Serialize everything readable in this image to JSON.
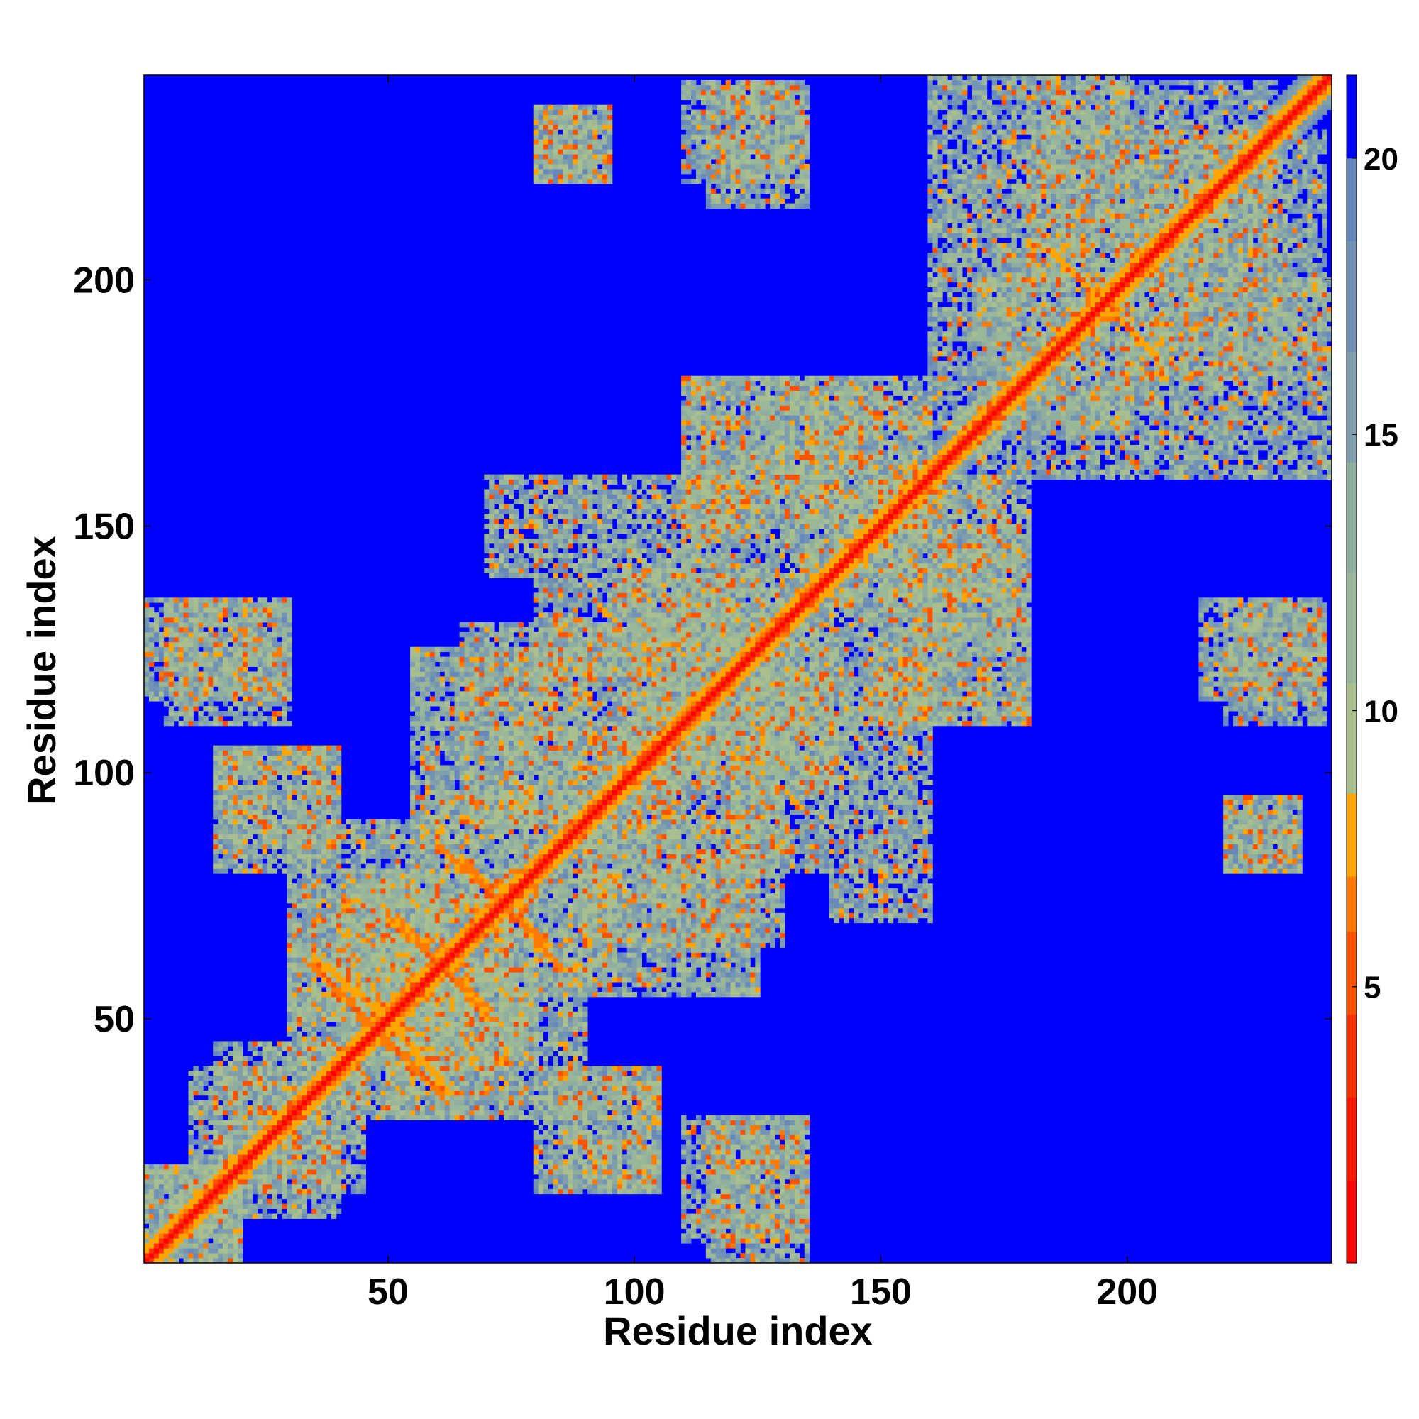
{
  "chart_data": {
    "type": "heatmap",
    "title": "",
    "xlabel": "Residue index",
    "ylabel": "Residue index",
    "xlim": [
      1,
      241
    ],
    "ylim": [
      1,
      241
    ],
    "x_ticks": [
      50,
      100,
      150,
      200
    ],
    "y_ticks": [
      50,
      100,
      150,
      200
    ],
    "colorbar": {
      "ticks": [
        5,
        10,
        15,
        20
      ],
      "range": [
        0,
        21.5
      ],
      "levels": [
        {
          "max": 1.5,
          "color": "#ff0000"
        },
        {
          "max": 3.0,
          "color": "#ff1a00"
        },
        {
          "max": 4.5,
          "color": "#ff3300"
        },
        {
          "max": 6.0,
          "color": "#ff5200"
        },
        {
          "max": 7.0,
          "color": "#ff7a00"
        },
        {
          "max": 8.5,
          "color": "#ffa500"
        },
        {
          "max": 10.5,
          "color": "#a9bf8e"
        },
        {
          "max": 12.5,
          "color": "#9ab79a"
        },
        {
          "max": 14.5,
          "color": "#8fae9f"
        },
        {
          "max": 16.5,
          "color": "#7f9fad"
        },
        {
          "max": 18.5,
          "color": "#7293b3"
        },
        {
          "max": 20.0,
          "color": "#6688bb"
        },
        {
          "max": 21.5,
          "color": "#0000ff"
        }
      ]
    },
    "background_color": "#0000ff",
    "diagonal": {
      "min_distance": 0,
      "near_distance": 3.8
    },
    "contact_blocks": [
      {
        "x": [
          1,
          20
        ],
        "y": [
          1,
          20
        ]
      },
      {
        "x": [
          10,
          45
        ],
        "y": [
          15,
          40
        ]
      },
      {
        "x": [
          15,
          40
        ],
        "y": [
          85,
          105
        ]
      },
      {
        "x": [
          1,
          30
        ],
        "y": [
          115,
          135
        ]
      },
      {
        "x": [
          30,
          80
        ],
        "y": [
          40,
          75
        ]
      },
      {
        "x": [
          50,
          90
        ],
        "y": [
          30,
          60
        ]
      },
      {
        "x": [
          55,
          80
        ],
        "y": [
          70,
          95
        ]
      },
      {
        "x": [
          80,
          105
        ],
        "y": [
          15,
          40
        ]
      },
      {
        "x": [
          65,
          110
        ],
        "y": [
          90,
          130
        ]
      },
      {
        "x": [
          85,
          125
        ],
        "y": [
          55,
          90
        ]
      },
      {
        "x": [
          100,
          140
        ],
        "y": [
          95,
          140
        ]
      },
      {
        "x": [
          120,
          160
        ],
        "y": [
          80,
          120
        ]
      },
      {
        "x": [
          110,
          150
        ],
        "y": [
          140,
          180
        ]
      },
      {
        "x": [
          150,
          180
        ],
        "y": [
          110,
          160
        ]
      },
      {
        "x": [
          135,
          160
        ],
        "y": [
          150,
          175
        ]
      },
      {
        "x": [
          160,
          200
        ],
        "y": [
          170,
          200
        ]
      },
      {
        "x": [
          180,
          230
        ],
        "y": [
          200,
          240
        ]
      },
      {
        "x": [
          200,
          241
        ],
        "y": [
          160,
          200
        ]
      },
      {
        "x": [
          215,
          240
        ],
        "y": [
          115,
          135
        ]
      },
      {
        "x": [
          220,
          235
        ],
        "y": [
          80,
          95
        ]
      },
      {
        "x": [
          110,
          135
        ],
        "y": [
          5,
          30
        ]
      },
      {
        "x": [
          110,
          135
        ],
        "y": [
          220,
          240
        ]
      },
      {
        "x": [
          80,
          95
        ],
        "y": [
          220,
          235
        ]
      },
      {
        "x": [
          140,
          160
        ],
        "y": [
          70,
          80
        ]
      }
    ],
    "bands": [
      {
        "from": [
          45,
          50
        ],
        "to": [
          60,
          35
        ],
        "value": 7.0
      },
      {
        "from": [
          65,
          82
        ],
        "to": [
          85,
          60
        ],
        "value": 7.0
      },
      {
        "from": [
          190,
          200
        ],
        "to": [
          205,
          185
        ],
        "value": 7.5
      },
      {
        "from": [
          35,
          62
        ],
        "to": [
          52,
          48
        ],
        "value": 7.5
      },
      {
        "from": [
          50,
          70
        ],
        "to": [
          70,
          52
        ],
        "value": 7.0
      }
    ]
  },
  "icons": {
    "colorbar": "colorbar-gradient"
  }
}
